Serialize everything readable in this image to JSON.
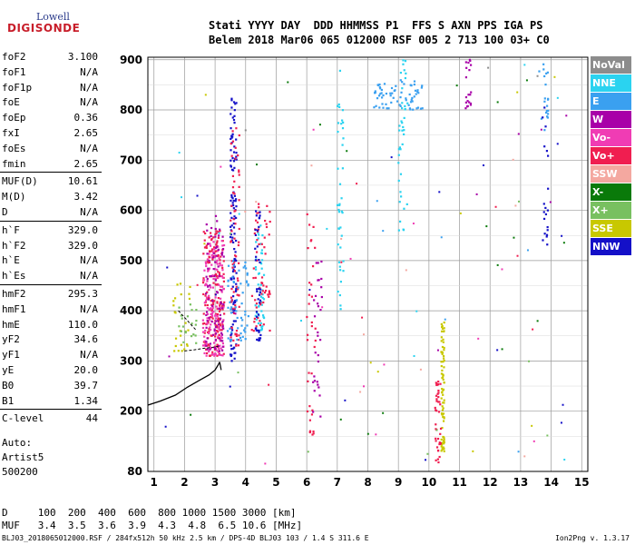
{
  "logo": {
    "line1": "Lowell",
    "line2": "DIGISONDE"
  },
  "header": {
    "line1": "Stati YYYY DAY  DDD HHMMSS P1  FFS S AXN PPS IGA PS",
    "line2": "Belem 2018 Mar06 065 012000 RSF 005 2 713 100 03+ C0"
  },
  "params": [
    [
      {
        "name": "foF2",
        "value": "3.100"
      },
      {
        "name": "foF1",
        "value": "N/A"
      },
      {
        "name": "foF1p",
        "value": "N/A"
      },
      {
        "name": "foE",
        "value": "N/A"
      },
      {
        "name": "foEp",
        "value": "0.36"
      },
      {
        "name": "fxI",
        "value": "2.65"
      },
      {
        "name": "foEs",
        "value": "N/A"
      },
      {
        "name": "fmin",
        "value": "2.65"
      }
    ],
    [
      {
        "name": "MUF(D)",
        "value": "10.61"
      },
      {
        "name": "M(D)",
        "value": "3.42"
      },
      {
        "name": "D",
        "value": "N/A"
      }
    ],
    [
      {
        "name": "h`F",
        "value": "329.0"
      },
      {
        "name": "h`F2",
        "value": "329.0"
      },
      {
        "name": "h`E",
        "value": "N/A"
      },
      {
        "name": "h`Es",
        "value": "N/A"
      }
    ],
    [
      {
        "name": "hmF2",
        "value": "295.3"
      },
      {
        "name": "hmF1",
        "value": "N/A"
      },
      {
        "name": "hmE",
        "value": "110.0"
      },
      {
        "name": "yF2",
        "value": "34.6"
      },
      {
        "name": "yF1",
        "value": "N/A"
      },
      {
        "name": "yE",
        "value": "20.0"
      },
      {
        "name": "B0",
        "value": "39.7"
      },
      {
        "name": "B1",
        "value": "1.34"
      }
    ],
    [
      {
        "name": "C-level",
        "value": "44"
      }
    ]
  ],
  "auto": {
    "line1": "Auto:",
    "line2": "Artist5",
    "line3": "500200"
  },
  "table": {
    "row1": "D     100  200  400  600  800 1000 1500 3000 [km]",
    "row2": "MUF   3.4  3.5  3.6  3.9  4.3  4.8  6.5 10.6 [MHz]"
  },
  "footer": {
    "left": "BLJ03_2018065012000.RSF / 284fx512h 50 kHz 2.5 km / DPS-4D BLJ03 103 / 1.4 S 311.6 E",
    "right": "Ion2Png v. 1.3.17"
  },
  "legend": [
    {
      "label": "NoVal",
      "color": "#8c8c8c"
    },
    {
      "label": "NNE",
      "color": "#2ad3f0"
    },
    {
      "label": "E",
      "color": "#3aa0f0"
    },
    {
      "label": "W",
      "color": "#a800a8"
    },
    {
      "label": "Vo-",
      "color": "#f03cb4"
    },
    {
      "label": "Vo+",
      "color": "#f01e50"
    },
    {
      "label": "SSW",
      "color": "#f4a8a0"
    },
    {
      "label": "X-",
      "color": "#0a7a0a"
    },
    {
      "label": "X+",
      "color": "#78c060"
    },
    {
      "label": "SSE",
      "color": "#c8c800"
    },
    {
      "label": "NNW",
      "color": "#1410c8"
    }
  ],
  "chart_data": {
    "type": "scatter",
    "title": "",
    "xlabel": "",
    "ylabel": "",
    "xlim": [
      0.8,
      15.2
    ],
    "ylim": [
      80,
      905
    ],
    "x_ticks": [
      1,
      2,
      3,
      4,
      5,
      6,
      7,
      8,
      9,
      10,
      11,
      12,
      13,
      14,
      15
    ],
    "y_ticks": [
      80,
      200,
      300,
      400,
      500,
      600,
      700,
      800,
      900
    ],
    "grid": true,
    "profile": {
      "color": "#000000",
      "x": [
        0.8,
        1.2,
        1.7,
        2.1,
        2.5,
        2.8,
        3.0,
        3.1,
        3.15
      ],
      "y": [
        212,
        220,
        232,
        248,
        262,
        272,
        282,
        292,
        298
      ]
    },
    "ordinary_trace": {
      "color": "#000000",
      "x": [
        2.0,
        2.3,
        2.6,
        2.9,
        3.1
      ],
      "y": [
        320,
        322,
        325,
        327,
        329
      ]
    },
    "clusters": [
      {
        "series": "Vo+",
        "f": [
          2.6,
          3.3
        ],
        "h": [
          310,
          560
        ],
        "n": 180
      },
      {
        "series": "Vo-",
        "f": [
          2.6,
          3.3
        ],
        "h": [
          310,
          540
        ],
        "n": 140
      },
      {
        "series": "W",
        "f": [
          2.7,
          3.3
        ],
        "h": [
          320,
          600
        ],
        "n": 90
      },
      {
        "series": "NNW",
        "f": [
          3.5,
          3.7
        ],
        "h": [
          300,
          840
        ],
        "n": 120
      },
      {
        "series": "Vo+",
        "f": [
          3.5,
          3.8
        ],
        "h": [
          330,
          780
        ],
        "n": 70
      },
      {
        "series": "E",
        "f": [
          3.4,
          4.1
        ],
        "h": [
          340,
          500
        ],
        "n": 60
      },
      {
        "series": "NNE",
        "f": [
          4.3,
          4.6
        ],
        "h": [
          360,
          580
        ],
        "n": 50
      },
      {
        "series": "Vo+",
        "f": [
          4.2,
          4.8
        ],
        "h": [
          360,
          640
        ],
        "n": 60
      },
      {
        "series": "NNW",
        "f": [
          4.3,
          4.5
        ],
        "h": [
          340,
          600
        ],
        "n": 40
      },
      {
        "series": "SSE",
        "f": [
          1.6,
          2.2
        ],
        "h": [
          320,
          460
        ],
        "n": 25
      },
      {
        "series": "X+",
        "f": [
          1.8,
          2.4
        ],
        "h": [
          330,
          420
        ],
        "n": 20
      },
      {
        "series": "Vo+",
        "f": [
          6.0,
          6.3
        ],
        "h": [
          150,
          600
        ],
        "n": 35
      },
      {
        "series": "W",
        "f": [
          6.2,
          6.5
        ],
        "h": [
          180,
          520
        ],
        "n": 30
      },
      {
        "series": "NNE",
        "f": [
          7.0,
          7.2
        ],
        "h": [
          400,
          880
        ],
        "n": 40
      },
      {
        "series": "E",
        "f": [
          8.2,
          9.8
        ],
        "h": [
          800,
          860
        ],
        "n": 70
      },
      {
        "series": "NNE",
        "f": [
          9.0,
          9.3
        ],
        "h": [
          560,
          900
        ],
        "n": 40
      },
      {
        "series": "W",
        "f": [
          11.2,
          11.4
        ],
        "h": [
          800,
          900
        ],
        "n": 20
      },
      {
        "series": "SSE",
        "f": [
          10.4,
          10.5
        ],
        "h": [
          120,
          380
        ],
        "n": 80
      },
      {
        "series": "Vo+",
        "f": [
          10.2,
          10.4
        ],
        "h": [
          90,
          260
        ],
        "n": 40
      },
      {
        "series": "E",
        "f": [
          13.6,
          13.9
        ],
        "h": [
          760,
          900
        ],
        "n": 20
      },
      {
        "series": "NNW",
        "f": [
          13.7,
          13.9
        ],
        "h": [
          520,
          900
        ],
        "n": 20
      }
    ]
  }
}
